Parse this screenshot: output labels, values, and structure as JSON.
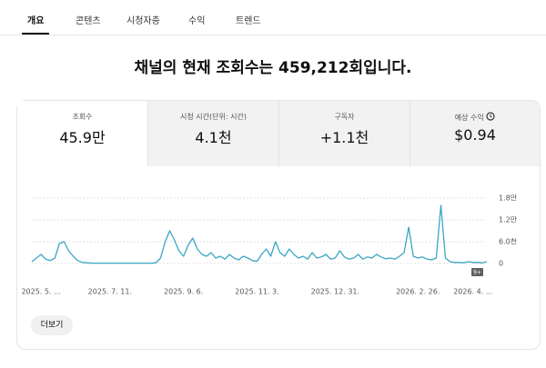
{
  "tabs": [
    "개요",
    "콘텐츠",
    "시청자층",
    "수익",
    "트렌드"
  ],
  "headline": "채널의 현재 조회수는 459,212회입니다.",
  "metrics": [
    {
      "label": "조회수",
      "value": "45.9만"
    },
    {
      "label": "시청 시간(단위: 시간)",
      "value": "4.1천"
    },
    {
      "label": "구독자",
      "value": "+1.1천"
    },
    {
      "label": "예상 수익",
      "value": "$0.94"
    }
  ],
  "badge": "9+",
  "more_button": "더보기",
  "chart_data": {
    "type": "line",
    "categories": [
      null,
      null,
      "2025. 5. ...",
      null,
      null,
      null,
      null,
      null,
      null,
      null,
      null,
      null,
      null,
      null,
      null,
      null,
      null,
      "2025. 7. 11.",
      null,
      null,
      null,
      null,
      null,
      null,
      null,
      null,
      null,
      null,
      null,
      null,
      null,
      null,
      null,
      "2025. 9. 6.",
      null,
      null,
      null,
      null,
      null,
      null,
      null,
      null,
      null,
      null,
      null,
      null,
      null,
      null,
      null,
      "2025. 11. 3.",
      null,
      null,
      null,
      null,
      null,
      null,
      null,
      null,
      null,
      null,
      null,
      null,
      null,
      null,
      null,
      null,
      "2025. 12. 31.",
      null,
      null,
      null,
      null,
      null,
      null,
      null,
      null,
      null,
      null,
      null,
      null,
      null,
      null,
      null,
      null,
      null,
      "2026. 2. 26.",
      null,
      null,
      null,
      null,
      null,
      null,
      null,
      null,
      null,
      null,
      null,
      "2026. 4. ...",
      null,
      null,
      null
    ],
    "series": [
      {
        "name": "조회수",
        "color": "#3aa6c4",
        "values": [
          500,
          1500,
          2500,
          1200,
          800,
          1500,
          5500,
          6000,
          3500,
          2000,
          800,
          300,
          200,
          100,
          100,
          100,
          100,
          100,
          100,
          100,
          100,
          100,
          100,
          100,
          100,
          100,
          100,
          200,
          1500,
          6000,
          9000,
          6500,
          3500,
          2000,
          5000,
          7000,
          4000,
          2500,
          2000,
          3000,
          1500,
          2000,
          1200,
          2500,
          1500,
          1000,
          2000,
          1500,
          800,
          600,
          2500,
          4000,
          2000,
          6000,
          3000,
          2000,
          4000,
          2500,
          1500,
          2000,
          1200,
          3000,
          1500,
          1800,
          2500,
          1200,
          1500,
          3500,
          1800,
          1200,
          1500,
          2500,
          1200,
          1800,
          1500,
          2500,
          1800,
          1300,
          1500,
          1200,
          2000,
          3000,
          10000,
          2000,
          1500,
          1800,
          1200,
          1000,
          1500,
          16000,
          1500,
          500,
          300,
          300,
          200,
          500,
          300,
          300,
          200,
          500
        ]
      }
    ],
    "ylim": [
      0,
      18000
    ],
    "yticks": [
      0,
      {
        "value": 6000,
        "label": "6.0천"
      },
      {
        "value": 12000,
        "label": "1.2만"
      },
      {
        "value": 18000,
        "label": "1.8만"
      }
    ],
    "grid": true
  }
}
